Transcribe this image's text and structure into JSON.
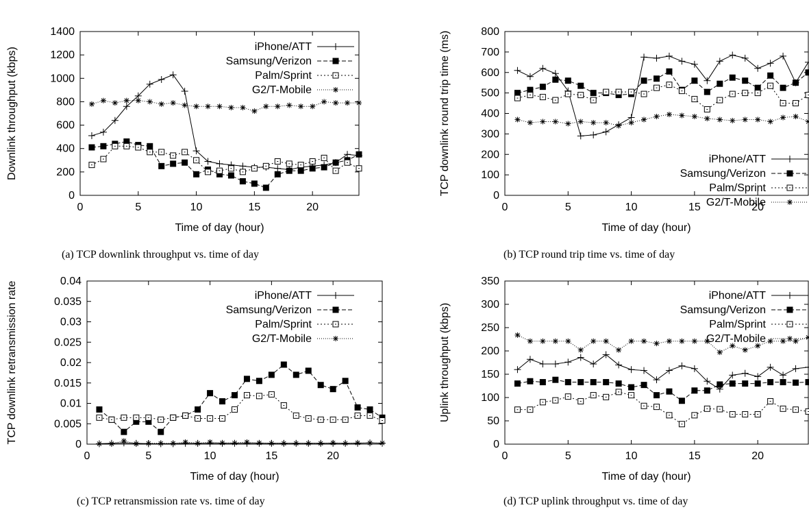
{
  "legend": [
    "iPhone/ATT",
    "Samsung/Verizon",
    "Palm/Sprint",
    "G2/T-Mobile"
  ],
  "captions": {
    "a": "(a) TCP downlink throughput vs. time of day",
    "b": "(b) TCP round trip time vs. time of day",
    "c": "(c) TCP retransmission rate vs. time of day",
    "d": "(d) TCP uplink throughput vs. time of day"
  },
  "chart_data": [
    {
      "id": "a",
      "type": "line",
      "xlabel": "Time of day (hour)",
      "ylabel": "Downlink throughput (kbps)",
      "xlim": [
        0,
        24
      ],
      "ylim": [
        0,
        1400
      ],
      "xticks": [
        "0",
        "5",
        "10",
        "15",
        "20"
      ],
      "yticks": [
        "0",
        "200",
        "400",
        "600",
        "800",
        "1000",
        "1200",
        "1400"
      ],
      "x": [
        1,
        2,
        3,
        4,
        5,
        6,
        7,
        8,
        9,
        10,
        11,
        12,
        13,
        14,
        15,
        16,
        17,
        18,
        19,
        20,
        21,
        22,
        23,
        24
      ],
      "series": [
        {
          "name": "iPhone/ATT",
          "values": [
            510,
            540,
            640,
            760,
            850,
            950,
            990,
            1030,
            890,
            380,
            290,
            270,
            260,
            250,
            240,
            240,
            230,
            220,
            240,
            250,
            260,
            280,
            350,
            340
          ]
        },
        {
          "name": "Samsung/Verizon",
          "values": [
            410,
            420,
            440,
            460,
            430,
            420,
            250,
            270,
            280,
            180,
            220,
            180,
            170,
            120,
            100,
            65,
            180,
            210,
            210,
            230,
            240,
            280,
            300,
            350
          ]
        },
        {
          "name": "Palm/Sprint",
          "values": [
            260,
            310,
            420,
            420,
            410,
            370,
            370,
            340,
            370,
            300,
            200,
            210,
            230,
            200,
            230,
            250,
            290,
            270,
            260,
            290,
            320,
            210,
            280,
            230
          ]
        },
        {
          "name": "G2/T-Mobile",
          "values": [
            780,
            810,
            790,
            810,
            810,
            800,
            780,
            790,
            770,
            760,
            760,
            760,
            750,
            750,
            720,
            760,
            760,
            770,
            760,
            760,
            800,
            790,
            790,
            790
          ]
        }
      ]
    },
    {
      "id": "b",
      "type": "line",
      "xlabel": "Time of day (hour)",
      "ylabel": "TCP downlink round trip time (ms)",
      "xlim": [
        0,
        24
      ],
      "ylim": [
        0,
        800
      ],
      "xticks": [
        "0",
        "5",
        "10",
        "15",
        "20"
      ],
      "yticks": [
        "0",
        "100",
        "200",
        "300",
        "400",
        "500",
        "600",
        "700",
        "800"
      ],
      "x": [
        1,
        2,
        3,
        4,
        5,
        6,
        7,
        8,
        9,
        10,
        11,
        12,
        13,
        14,
        15,
        16,
        17,
        18,
        19,
        20,
        21,
        22,
        23,
        24
      ],
      "series": [
        {
          "name": "iPhone/ATT",
          "values": [
            610,
            580,
            620,
            595,
            510,
            290,
            295,
            310,
            345,
            380,
            675,
            670,
            680,
            655,
            640,
            560,
            655,
            685,
            670,
            620,
            645,
            680,
            550,
            650
          ]
        },
        {
          "name": "Samsung/Verizon",
          "values": [
            500,
            515,
            530,
            565,
            560,
            535,
            500,
            500,
            490,
            495,
            560,
            570,
            605,
            515,
            560,
            505,
            545,
            575,
            560,
            525,
            585,
            525,
            550,
            600
          ]
        },
        {
          "name": "Palm/Sprint",
          "values": [
            475,
            490,
            480,
            465,
            495,
            490,
            465,
            505,
            505,
            505,
            495,
            525,
            540,
            510,
            470,
            420,
            465,
            495,
            500,
            500,
            535,
            450,
            450,
            490
          ]
        },
        {
          "name": "G2/T-Mobile",
          "values": [
            370,
            355,
            360,
            360,
            350,
            360,
            355,
            355,
            340,
            355,
            370,
            385,
            395,
            390,
            385,
            375,
            370,
            365,
            370,
            370,
            360,
            380,
            385,
            360
          ]
        }
      ]
    },
    {
      "id": "c",
      "type": "line",
      "xlabel": "Time of day (hour)",
      "ylabel": "TCP downlink retransmission rate",
      "xlim": [
        0,
        24
      ],
      "ylim": [
        0,
        0.04
      ],
      "xticks": [
        "0",
        "5",
        "10",
        "15",
        "20"
      ],
      "yticks": [
        "0",
        "0.005",
        "0.01",
        "0.015",
        "0.02",
        "0.025",
        "0.03",
        "0.035",
        "0.04"
      ],
      "x": [
        1,
        2,
        3,
        4,
        5,
        6,
        7,
        8,
        9,
        10,
        11,
        12,
        13,
        14,
        15,
        16,
        17,
        18,
        19,
        20,
        21,
        22,
        23,
        24
      ],
      "series": [
        {
          "name": "iPhone/ATT",
          "values": [
            0.0001,
            0.0002,
            0.0003,
            0.0002,
            0.0001,
            0.0001,
            0.0001,
            0.0002,
            0.0002,
            0.0002,
            0.0002,
            0.0002,
            0.0002,
            0.0002,
            0.0002,
            0.0002,
            0.0002,
            0.0002,
            0.0002,
            0.0002,
            0.0002,
            0.0002,
            0.0003,
            0.0002
          ]
        },
        {
          "name": "Samsung/Verizon",
          "values": [
            0.0085,
            0.006,
            0.003,
            0.0055,
            0.0055,
            0.003,
            0.0065,
            0.007,
            0.0085,
            0.0125,
            0.0105,
            0.012,
            0.016,
            0.0155,
            0.017,
            0.0195,
            0.017,
            0.018,
            0.0145,
            0.0135,
            0.0155,
            0.009,
            0.0085,
            0.0065
          ]
        },
        {
          "name": "Palm/Sprint",
          "values": [
            0.0065,
            0.006,
            0.0065,
            0.0065,
            0.0065,
            0.006,
            0.0065,
            0.007,
            0.0063,
            0.0063,
            0.0063,
            0.0085,
            0.012,
            0.0118,
            0.0122,
            0.0095,
            0.007,
            0.0063,
            0.006,
            0.006,
            0.006,
            0.007,
            0.007,
            0.0058
          ]
        },
        {
          "name": "G2/T-Mobile",
          "values": [
            0.0001,
            0.0001,
            0.0008,
            0.0001,
            0.0002,
            0.0002,
            0.0002,
            0.0005,
            0.0002,
            0.0005,
            0.0003,
            0.0003,
            0.0005,
            0.0003,
            0.0002,
            0.0002,
            0.0002,
            0.0002,
            0.0002,
            0.0003,
            0.0002,
            0.0003,
            0.0003,
            0.0003
          ]
        }
      ]
    },
    {
      "id": "d",
      "type": "line",
      "xlabel": "Time of day (hour)",
      "ylabel": "Uplink throughput (kbps)",
      "xlim": [
        0,
        24
      ],
      "ylim": [
        0,
        350
      ],
      "xticks": [
        "0",
        "5",
        "10",
        "15",
        "20"
      ],
      "yticks": [
        "0",
        "50",
        "100",
        "150",
        "200",
        "250",
        "300",
        "350"
      ],
      "x": [
        1,
        2,
        3,
        4,
        5,
        6,
        7,
        8,
        9,
        10,
        11,
        12,
        13,
        14,
        15,
        16,
        17,
        18,
        19,
        20,
        21,
        22,
        23,
        24
      ],
      "series": [
        {
          "name": "iPhone/ATT",
          "values": [
            160,
            182,
            172,
            172,
            176,
            186,
            172,
            192,
            170,
            160,
            158,
            138,
            158,
            168,
            162,
            135,
            118,
            148,
            152,
            145,
            165,
            148,
            162,
            165
          ]
        },
        {
          "name": "Samsung/Verizon",
          "values": [
            130,
            135,
            133,
            138,
            133,
            133,
            133,
            133,
            130,
            122,
            127,
            105,
            113,
            93,
            115,
            115,
            128,
            130,
            130,
            130,
            133,
            133,
            132,
            133
          ]
        },
        {
          "name": "Palm/Sprint",
          "values": [
            74,
            74,
            90,
            94,
            102,
            92,
            105,
            101,
            112,
            105,
            82,
            80,
            62,
            43,
            62,
            76,
            75,
            64,
            64,
            64,
            92,
            76,
            74,
            70
          ]
        },
        {
          "name": "G2/T-Mobile",
          "values": [
            234,
            221,
            221,
            221,
            221,
            202,
            221,
            221,
            202,
            221,
            221,
            216,
            221,
            221,
            221,
            221,
            197,
            211,
            202,
            211,
            221,
            221,
            221,
            229
          ]
        }
      ]
    }
  ]
}
